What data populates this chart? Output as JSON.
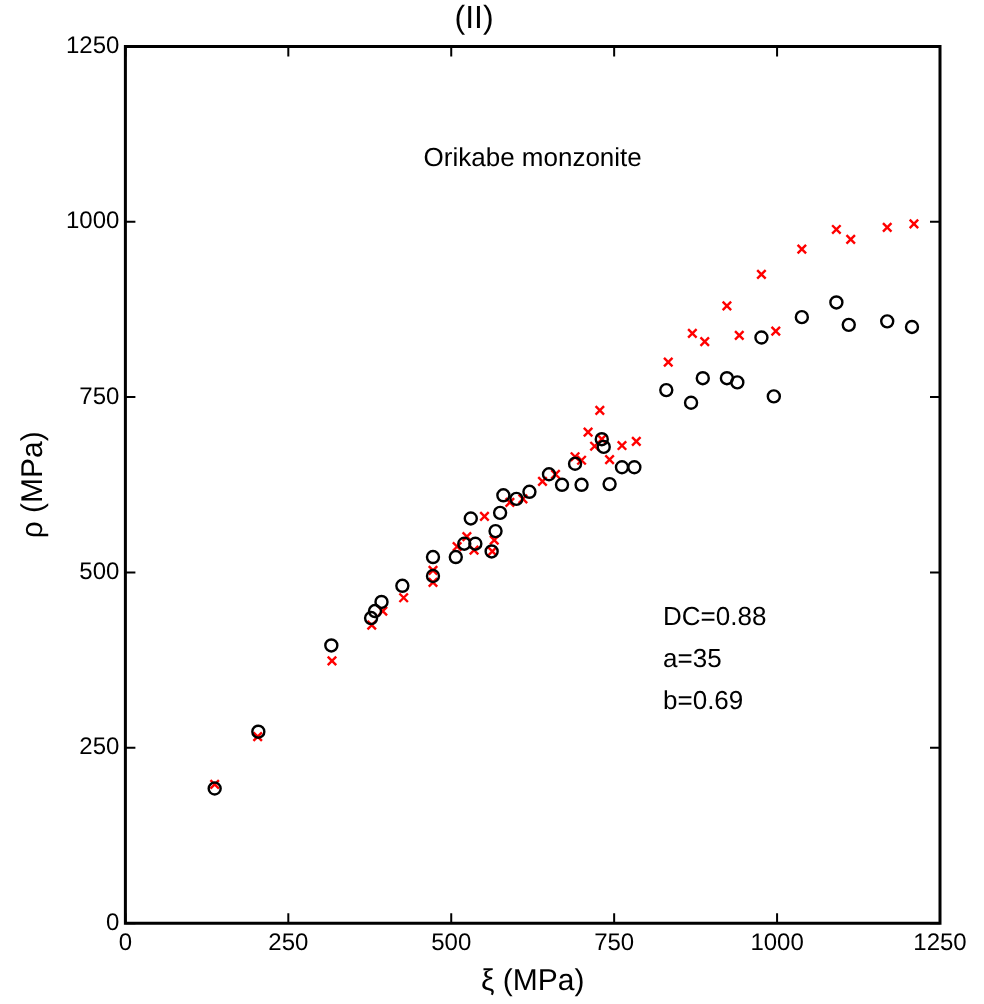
{
  "chart_data": {
    "type": "scatter",
    "title": "(II)",
    "xlabel": "ξ (MPa)",
    "ylabel": "ρ (MPa)",
    "annotations": [
      "Orikabe monzonite",
      "DC=0.88",
      "a=35",
      "b=0.69"
    ],
    "xlim": [
      0,
      1250
    ],
    "xticks": [
      0,
      250,
      500,
      750,
      1000,
      1250
    ],
    "ylim": [
      0,
      1250
    ],
    "yticks": [
      0,
      250,
      500,
      750,
      1000,
      1250
    ],
    "legend": false,
    "series": [
      {
        "color": "#000000",
        "marker": "circle",
        "x": [
          137,
          204,
          316,
          377,
          383,
          393,
          425,
          472,
          472,
          507,
          520,
          537,
          530,
          562,
          568,
          575,
          580,
          600,
          620,
          650,
          670,
          690,
          700,
          731,
          734,
          743,
          762,
          781,
          830,
          868,
          886,
          923,
          939,
          995,
          976,
          1038,
          1091,
          1110,
          1169,
          1207
        ],
        "values": [
          192,
          273,
          396,
          435,
          445,
          458,
          481,
          522,
          495,
          522,
          541,
          541,
          577,
          530,
          559,
          585,
          610,
          605,
          615,
          640,
          625,
          655,
          625,
          690,
          679,
          626,
          650,
          650,
          760,
          742,
          777,
          777,
          771,
          751,
          835,
          864,
          885,
          853,
          858,
          850
        ]
      },
      {
        "color": "#ff0000",
        "marker": "cross",
        "x": [
          137,
          203,
          317,
          378,
          395,
          427,
          472,
          472,
          509,
          524,
          535,
          566,
          563,
          551,
          590,
          610,
          640,
          660,
          690,
          700,
          710,
          720,
          728,
          731,
          743,
          762,
          784,
          833,
          870,
          889,
          923,
          942,
          976,
          998,
          1038,
          1091,
          1113,
          1169,
          1210
        ],
        "values": [
          198,
          266,
          374,
          425,
          445,
          464,
          486,
          503,
          537,
          551,
          532,
          546,
          530,
          580,
          600,
          605,
          630,
          640,
          665,
          660,
          700,
          680,
          731,
          690,
          661,
          681,
          687,
          800,
          841,
          829,
          880,
          838,
          925,
          844,
          961,
          989,
          975,
          992,
          997
        ]
      }
    ]
  }
}
